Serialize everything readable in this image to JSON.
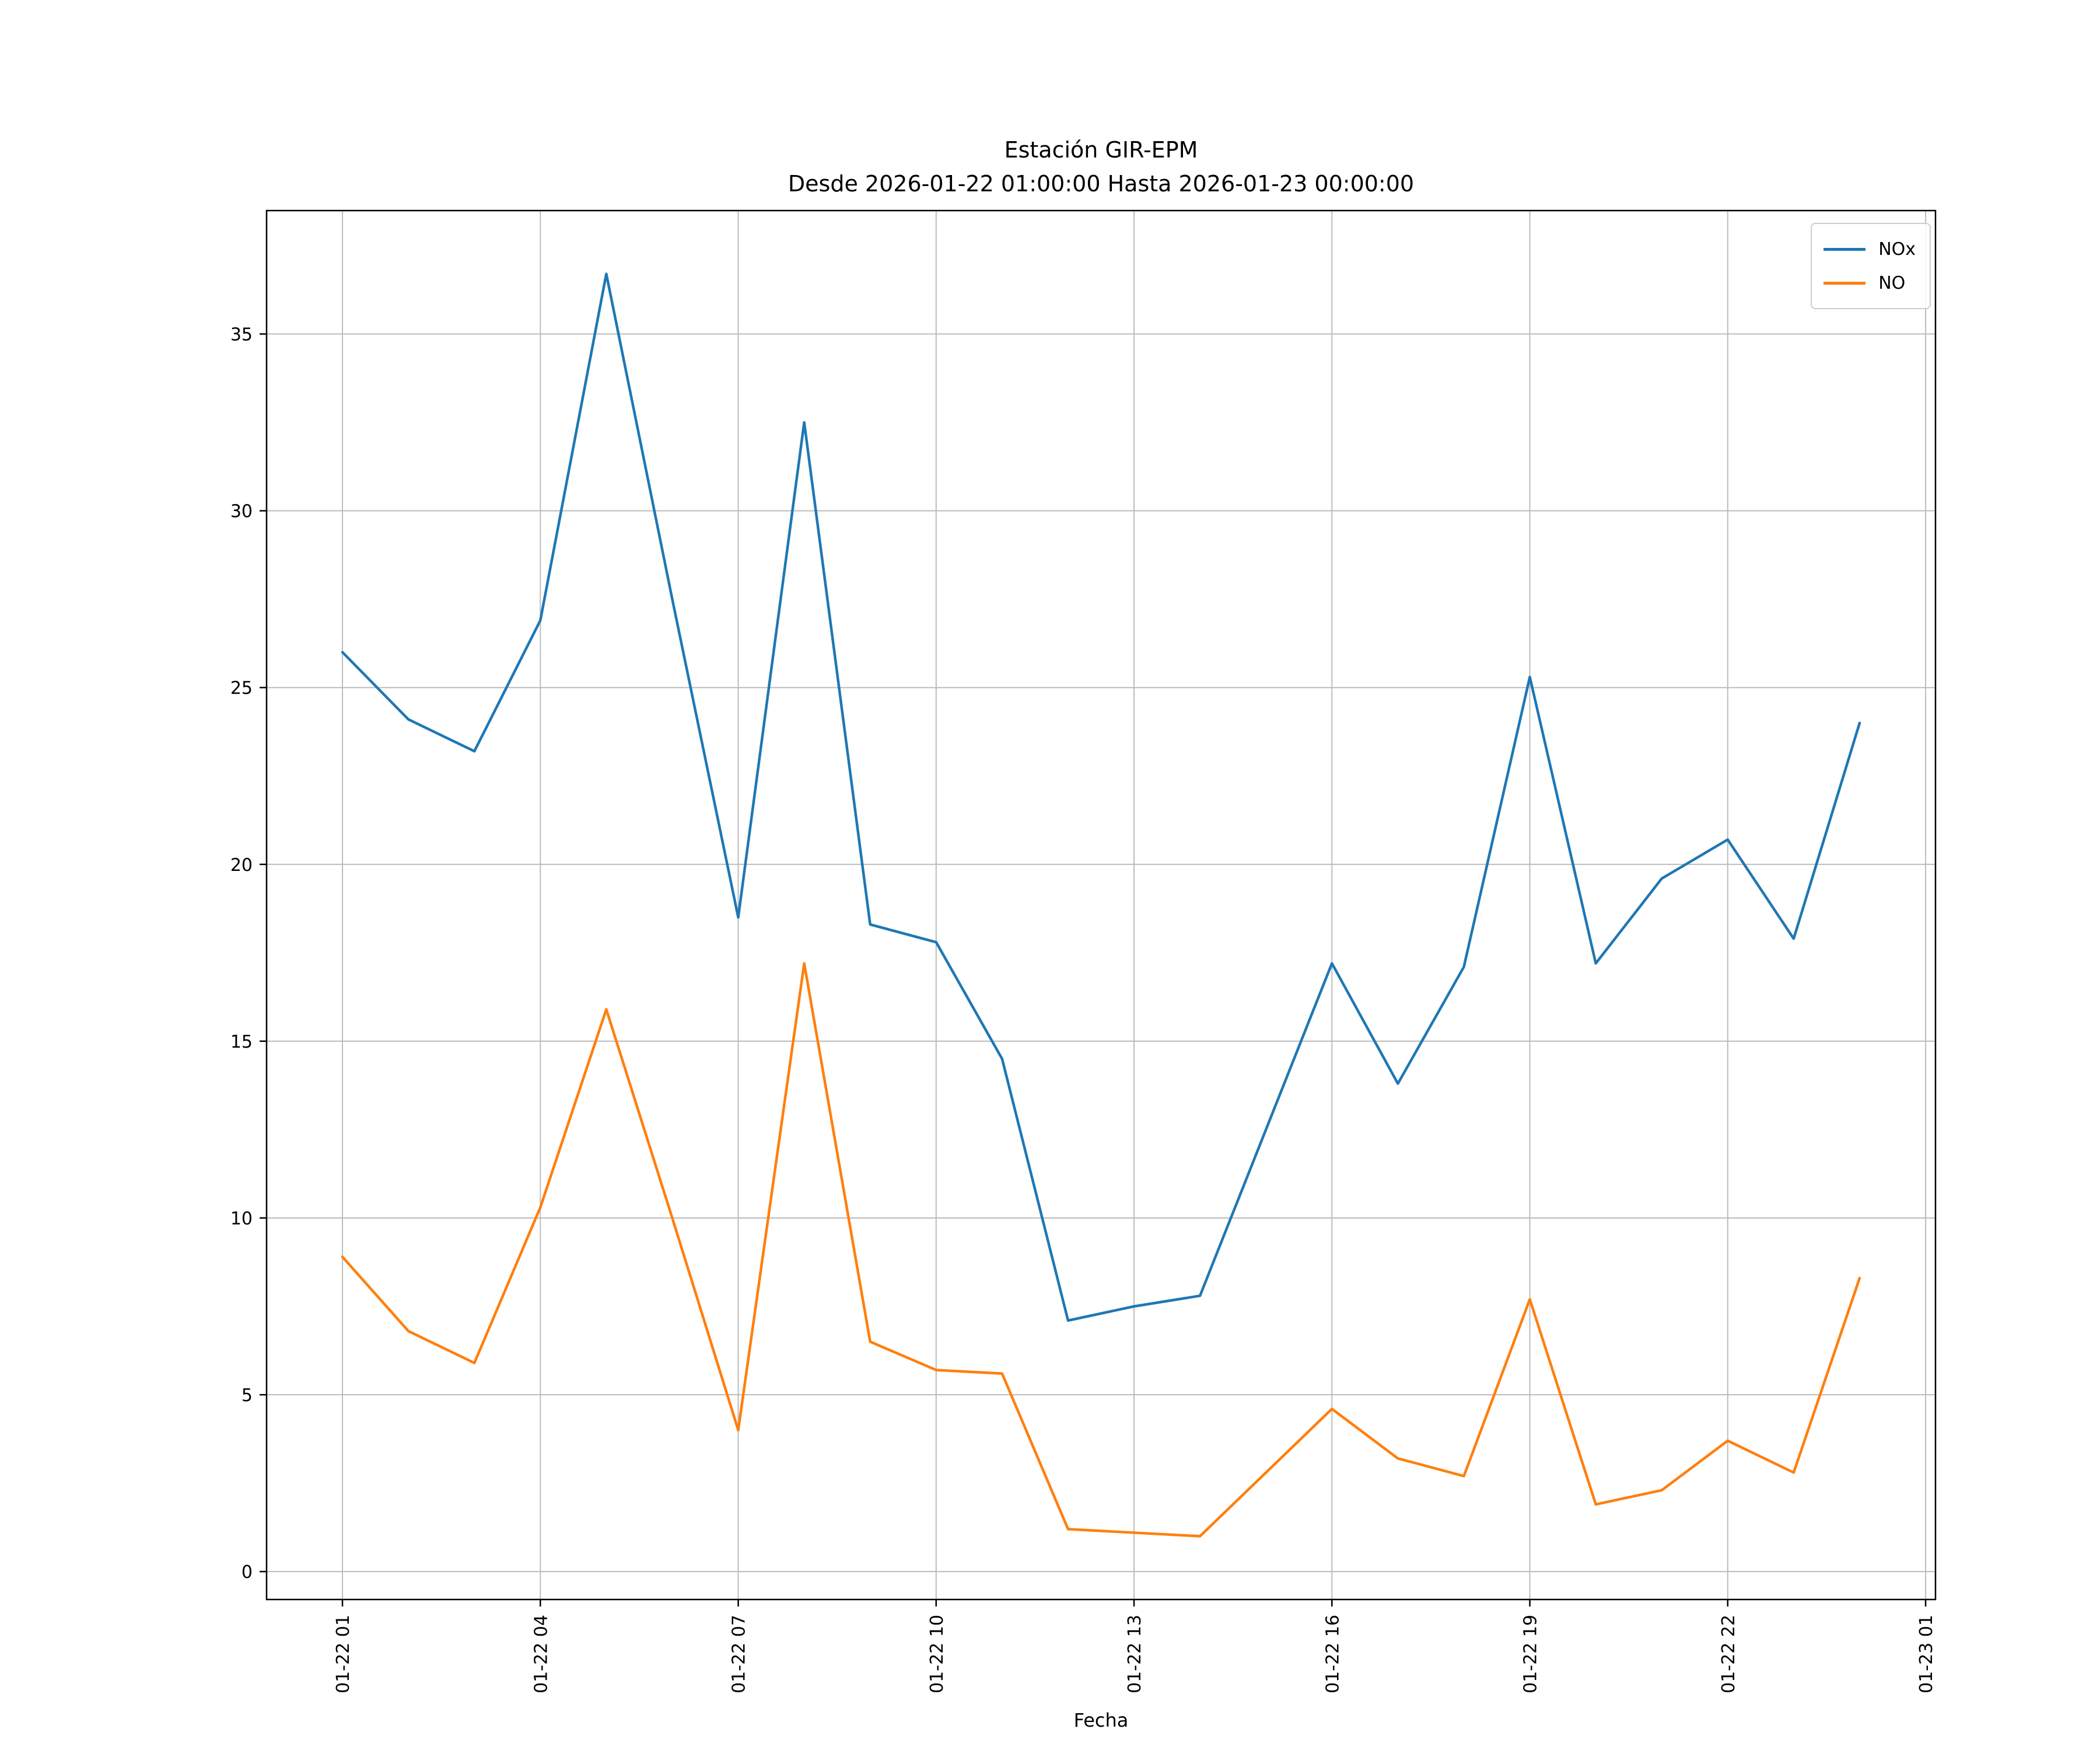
{
  "header": {
    "title": "Estación GIR-EPM",
    "subtitle": "Desde 2026-01-22 01:00:00 Hasta 2026-01-23 00:00:00"
  },
  "chart_data": {
    "type": "line",
    "title": "Estación GIR-EPM",
    "subtitle": "Desde 2026-01-22 01:00:00 Hasta 2026-01-23 00:00:00",
    "xlabel": "Fecha",
    "ylabel": "",
    "grid": true,
    "legend_position": "upper right",
    "x_hours": [
      1,
      2,
      3,
      4,
      5,
      6,
      7,
      8,
      9,
      10,
      11,
      12,
      13,
      14,
      15,
      16,
      17,
      18,
      19,
      20,
      21,
      22,
      23,
      24
    ],
    "x_tick_hours": [
      1,
      4,
      7,
      10,
      13,
      16,
      19,
      22,
      25
    ],
    "x_tick_labels": [
      "01-22 01",
      "01-22 04",
      "01-22 07",
      "01-22 10",
      "01-22 13",
      "01-22 16",
      "01-22 19",
      "01-22 22",
      "01-23 01"
    ],
    "y_ticks": [
      0,
      5,
      10,
      15,
      20,
      25,
      30,
      35
    ],
    "xlim": [
      -0.15,
      25.15
    ],
    "ylim": [
      -0.79,
      38.49
    ],
    "series": [
      {
        "name": "NOx",
        "color": "#1f77b4",
        "values": [
          26.0,
          24.1,
          23.2,
          26.9,
          36.7,
          27.5,
          18.5,
          32.5,
          18.3,
          17.8,
          14.5,
          7.1,
          7.5,
          7.8,
          12.5,
          17.2,
          13.8,
          17.1,
          25.3,
          17.2,
          19.6,
          20.7,
          17.9,
          24.0
        ]
      },
      {
        "name": "NO",
        "color": "#ff7f0e",
        "values": [
          8.9,
          6.8,
          5.9,
          10.3,
          15.9,
          10.0,
          4.0,
          17.2,
          6.5,
          5.7,
          5.6,
          1.2,
          1.1,
          1.0,
          2.8,
          4.6,
          3.2,
          2.7,
          7.7,
          1.9,
          2.3,
          3.7,
          2.8,
          8.3
        ]
      }
    ]
  }
}
